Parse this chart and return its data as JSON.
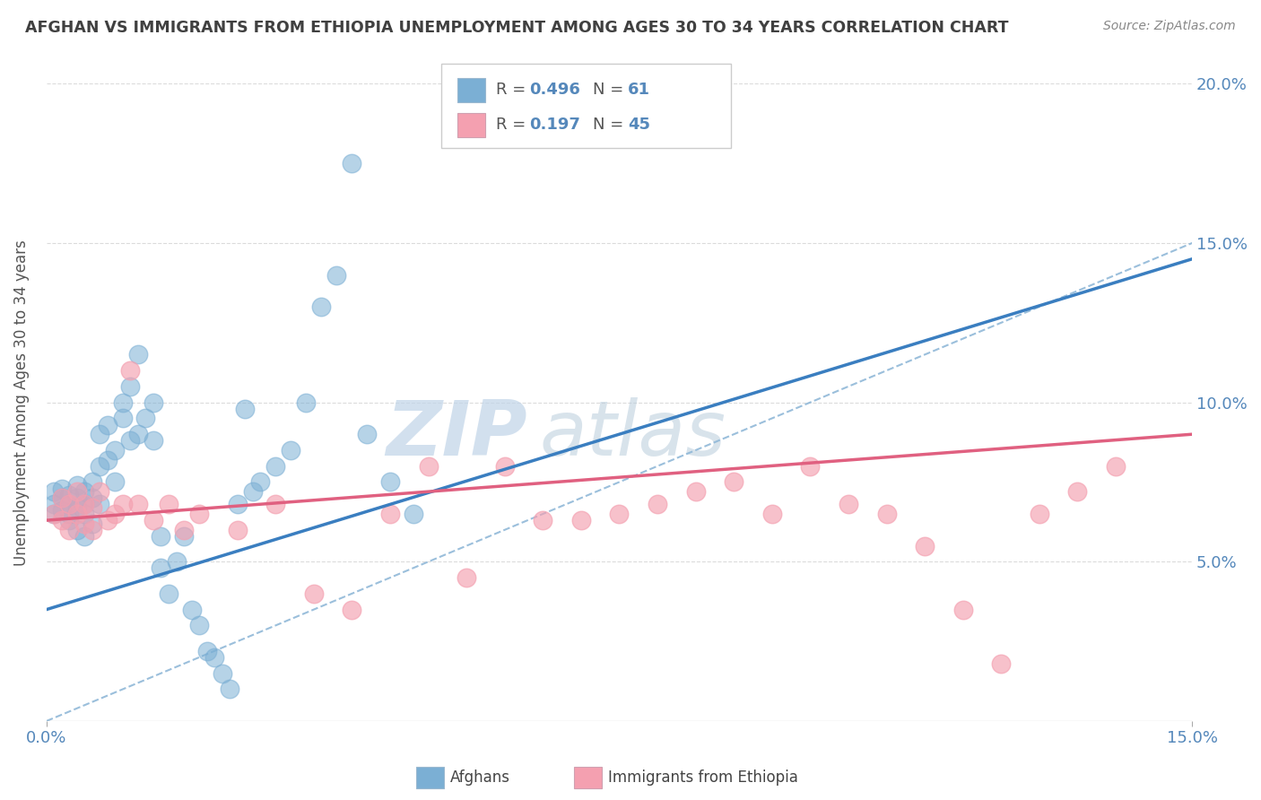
{
  "title": "AFGHAN VS IMMIGRANTS FROM ETHIOPIA UNEMPLOYMENT AMONG AGES 30 TO 34 YEARS CORRELATION CHART",
  "source_text": "Source: ZipAtlas.com",
  "ylabel": "Unemployment Among Ages 30 to 34 years",
  "xlim": [
    0.0,
    0.15
  ],
  "ylim": [
    0.0,
    0.2
  ],
  "afghan_color": "#7BAFD4",
  "ethiopia_color": "#F4A0B0",
  "afghan_line_color": "#3a7ec0",
  "ethiopia_line_color": "#e06080",
  "ref_line_color": "#90b8d8",
  "afghan_R": 0.496,
  "afghan_N": 61,
  "ethiopia_R": 0.197,
  "ethiopia_N": 45,
  "background_color": "#ffffff",
  "grid_color": "#cccccc",
  "watermark": "ZIPatlas",
  "watermark_color_zip": "#b8cce0",
  "watermark_color_atlas": "#90aac8",
  "title_color": "#404040",
  "axis_label_color": "#555555",
  "tick_color": "#5588bb",
  "afghan_trend_x0": 0.0,
  "afghan_trend_y0": 0.035,
  "afghan_trend_x1": 0.15,
  "afghan_trend_y1": 0.145,
  "ethiopia_trend_x0": 0.0,
  "ethiopia_trend_y0": 0.063,
  "ethiopia_trend_x1": 0.15,
  "ethiopia_trend_y1": 0.09,
  "afghan_scatter_x": [
    0.001,
    0.001,
    0.001,
    0.002,
    0.002,
    0.002,
    0.003,
    0.003,
    0.003,
    0.003,
    0.004,
    0.004,
    0.004,
    0.004,
    0.005,
    0.005,
    0.005,
    0.005,
    0.006,
    0.006,
    0.006,
    0.007,
    0.007,
    0.007,
    0.008,
    0.008,
    0.009,
    0.009,
    0.01,
    0.01,
    0.011,
    0.011,
    0.012,
    0.012,
    0.013,
    0.014,
    0.014,
    0.015,
    0.015,
    0.016,
    0.017,
    0.018,
    0.019,
    0.02,
    0.021,
    0.022,
    0.023,
    0.024,
    0.025,
    0.026,
    0.027,
    0.028,
    0.03,
    0.032,
    0.034,
    0.036,
    0.038,
    0.04,
    0.042,
    0.045,
    0.048
  ],
  "afghan_scatter_y": [
    0.068,
    0.072,
    0.065,
    0.07,
    0.073,
    0.066,
    0.068,
    0.071,
    0.065,
    0.063,
    0.067,
    0.07,
    0.074,
    0.06,
    0.065,
    0.068,
    0.072,
    0.058,
    0.07,
    0.075,
    0.062,
    0.08,
    0.068,
    0.09,
    0.082,
    0.093,
    0.075,
    0.085,
    0.095,
    0.1,
    0.088,
    0.105,
    0.09,
    0.115,
    0.095,
    0.088,
    0.1,
    0.058,
    0.048,
    0.04,
    0.05,
    0.058,
    0.035,
    0.03,
    0.022,
    0.02,
    0.015,
    0.01,
    0.068,
    0.098,
    0.072,
    0.075,
    0.08,
    0.085,
    0.1,
    0.13,
    0.14,
    0.175,
    0.09,
    0.075,
    0.065
  ],
  "ethiopia_scatter_x": [
    0.001,
    0.002,
    0.002,
    0.003,
    0.003,
    0.004,
    0.004,
    0.005,
    0.005,
    0.006,
    0.006,
    0.007,
    0.008,
    0.009,
    0.01,
    0.011,
    0.012,
    0.014,
    0.016,
    0.018,
    0.02,
    0.025,
    0.03,
    0.035,
    0.04,
    0.045,
    0.05,
    0.055,
    0.06,
    0.065,
    0.07,
    0.075,
    0.08,
    0.085,
    0.09,
    0.095,
    0.1,
    0.105,
    0.11,
    0.115,
    0.12,
    0.125,
    0.13,
    0.135,
    0.14
  ],
  "ethiopia_scatter_y": [
    0.065,
    0.07,
    0.063,
    0.068,
    0.06,
    0.065,
    0.072,
    0.068,
    0.062,
    0.067,
    0.06,
    0.072,
    0.063,
    0.065,
    0.068,
    0.11,
    0.068,
    0.063,
    0.068,
    0.06,
    0.065,
    0.06,
    0.068,
    0.04,
    0.035,
    0.065,
    0.08,
    0.045,
    0.08,
    0.063,
    0.063,
    0.065,
    0.068,
    0.072,
    0.075,
    0.065,
    0.08,
    0.068,
    0.065,
    0.055,
    0.035,
    0.018,
    0.065,
    0.072,
    0.08
  ]
}
